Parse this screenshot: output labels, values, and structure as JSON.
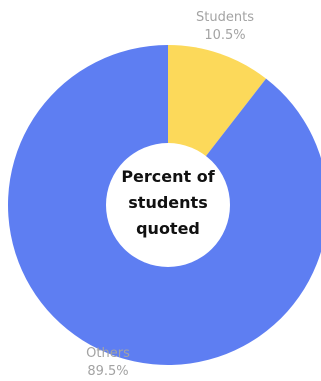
{
  "chart_data": {
    "type": "pie",
    "variant": "donut",
    "center_label": [
      "Percent of",
      "students",
      "quoted"
    ],
    "slices": [
      {
        "label": "Students",
        "value": 10.5,
        "value_label": "10.5%",
        "color": "#fcd95a"
      },
      {
        "label": "Others",
        "value": 89.5,
        "value_label": "89.5%",
        "color": "#5e7ef2"
      }
    ]
  }
}
